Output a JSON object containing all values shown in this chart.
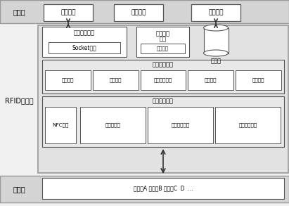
{
  "server_label": "服务器",
  "rfid_label": "RFID中间件",
  "sense_label": "感知层",
  "server_boxes": [
    "上层应用",
    "上层应用",
    "上层应用"
  ],
  "data_exchange_title": "数据交互模块",
  "socket_label": "Socket通信",
  "task_mgmt_line1": "任务管理",
  "task_mgmt_line2": "模块",
  "task_queue_label": "任务队列",
  "db_label": "数据库",
  "data_proc_title": "数据处理模块",
  "data_proc_items": [
    "协议校验",
    "标签缓存",
    "冗余数据处理",
    "数据校验",
    "数据分类"
  ],
  "device_mgmt_title": "设备管理模块",
  "device_items": [
    "NFC模块",
    "阅读器管理",
    "工作日志管理",
    "手机状态查询"
  ],
  "sense_content": "阅读器A 阅读器B 阅读器C  D  ...",
  "bg_outer": "#f0f0f0",
  "bg_strip": "#d4d4d4",
  "bg_rfid": "#e2e2e2",
  "bg_module": "#e8e8e8",
  "col_edge_outer": "#999999",
  "col_edge_box": "#555555",
  "col_white": "#ffffff"
}
